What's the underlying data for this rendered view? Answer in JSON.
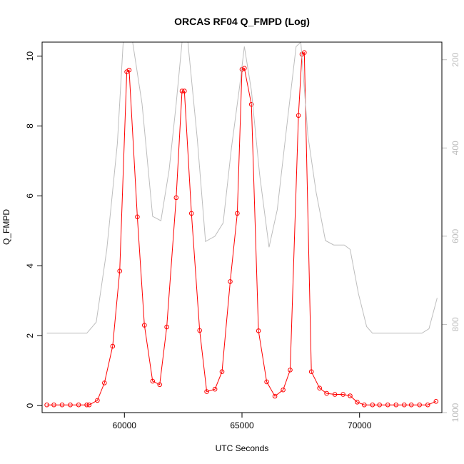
{
  "chart_data": {
    "type": "line",
    "title": "ORCAS RF04 Q_FMPD (Log)",
    "xlabel": "UTC Seconds",
    "ylabel": "Q_FMPD",
    "y2label": "",
    "xlim": [
      56500,
      73500
    ],
    "ylim": [
      -0.2,
      10.4
    ],
    "y2lim": [
      1000,
      160
    ],
    "x_ticks": [
      60000,
      65000,
      70000
    ],
    "x_tick_labels": [
      "60000",
      "65000",
      "70000"
    ],
    "y_ticks": [
      0,
      2,
      4,
      6,
      8,
      10
    ],
    "y_tick_labels": [
      "0",
      "2",
      "4",
      "6",
      "8",
      "10"
    ],
    "y2_ticks": [
      200,
      400,
      600,
      800,
      1000
    ],
    "y2_tick_labels": [
      "200",
      "400",
      "600",
      "800",
      "1000"
    ],
    "grid": false,
    "colors": {
      "primary": "#ff0000",
      "secondary": "#bdbdbd",
      "axis": "#000000"
    },
    "series": [
      {
        "axis": "left",
        "style": "line+open-circles",
        "color": "#ff0000",
        "x": [
          56700,
          57000,
          57350,
          57700,
          58050,
          58400,
          58500,
          58850,
          59150,
          59500,
          59800,
          60100,
          60200,
          60550,
          60850,
          61200,
          61500,
          61800,
          62200,
          62450,
          62550,
          62850,
          63200,
          63500,
          63850,
          64150,
          64500,
          64800,
          65000,
          65100,
          65400,
          65700,
          66050,
          66400,
          66750,
          67050,
          67400,
          67550,
          67650,
          67950,
          68300,
          68600,
          68950,
          69300,
          69600,
          69900,
          70200,
          70550,
          70850,
          71200,
          71550,
          71900,
          72200,
          72550,
          72900,
          73250
        ],
        "y": [
          0.02,
          0.02,
          0.02,
          0.02,
          0.02,
          0.02,
          0.02,
          0.15,
          0.65,
          1.7,
          3.85,
          9.55,
          9.6,
          5.4,
          2.3,
          0.7,
          0.6,
          2.25,
          5.95,
          9.0,
          9.0,
          5.5,
          2.15,
          0.4,
          0.47,
          0.97,
          3.55,
          5.5,
          9.62,
          9.65,
          8.62,
          2.14,
          0.68,
          0.27,
          0.45,
          1.02,
          8.3,
          10.05,
          10.1,
          0.97,
          0.5,
          0.35,
          0.32,
          0.32,
          0.28,
          0.1,
          0.02,
          0.02,
          0.02,
          0.02,
          0.02,
          0.02,
          0.02,
          0.02,
          0.02,
          0.12
        ]
      },
      {
        "axis": "right",
        "style": "line",
        "color": "#bdbdbd",
        "x": [
          56700,
          57400,
          58100,
          58400,
          58800,
          59250,
          59700,
          59950,
          60350,
          60750,
          61200,
          61550,
          61900,
          62200,
          62450,
          62700,
          63100,
          63450,
          63850,
          64200,
          64550,
          64900,
          65100,
          65400,
          65750,
          66150,
          66500,
          66950,
          67300,
          67500,
          67800,
          68150,
          68550,
          68900,
          69350,
          69600,
          69950,
          70300,
          70550,
          70900,
          71250,
          71600,
          71950,
          72300,
          72650,
          72950,
          73300
        ],
        "y": [
          820,
          820,
          820,
          820,
          795,
          630,
          390,
          160,
          160,
          300,
          555,
          565,
          450,
          300,
          160,
          160,
          380,
          612,
          600,
          570,
          400,
          260,
          170,
          270,
          460,
          625,
          540,
          330,
          170,
          160,
          370,
          500,
          610,
          620,
          620,
          630,
          730,
          805,
          820,
          820,
          820,
          820,
          820,
          820,
          820,
          810,
          740
        ]
      }
    ]
  }
}
